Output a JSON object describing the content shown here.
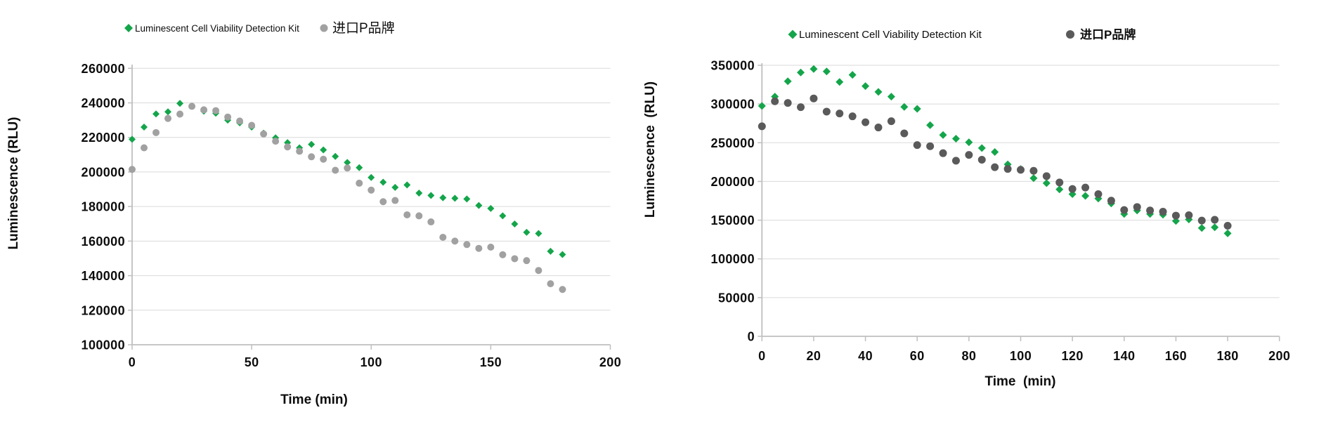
{
  "figure": {
    "background": "#ffffff"
  },
  "chart_data": [
    {
      "type": "scatter",
      "title": "",
      "xlabel": "Time (min)",
      "ylabel": "Luminescence (RLU)",
      "xlim": [
        0,
        200
      ],
      "ylim": [
        100000,
        260000
      ],
      "xticks": [
        0,
        50,
        100,
        150,
        200
      ],
      "yticks": [
        100000,
        120000,
        140000,
        160000,
        180000,
        200000,
        220000,
        240000,
        260000
      ],
      "grid": "horizontal",
      "legend_position": "top",
      "x": [
        0,
        5,
        10,
        15,
        20,
        25,
        30,
        35,
        40,
        45,
        50,
        55,
        60,
        65,
        70,
        75,
        80,
        85,
        90,
        95,
        100,
        105,
        110,
        115,
        120,
        125,
        130,
        135,
        140,
        145,
        150,
        155,
        160,
        165,
        170,
        175,
        180
      ],
      "series": [
        {
          "name": "Luminescent Cell Viability Detection Kit",
          "marker": "diamond",
          "color": "#14A54B",
          "values": [
            218900,
            226000,
            233600,
            234800,
            239700,
            238200,
            235200,
            234000,
            230000,
            228400,
            226000,
            222500,
            219800,
            217000,
            214000,
            216000,
            212800,
            209000,
            205500,
            202500,
            196800,
            194100,
            191100,
            192500,
            187800,
            186400,
            185100,
            184800,
            184400,
            180600,
            178900,
            174600,
            169900,
            165100,
            164400,
            154100,
            152200
          ]
        },
        {
          "name": "进口P品牌",
          "marker": "circle",
          "color": "#A1A1A1",
          "values": [
            201500,
            214000,
            222800,
            231000,
            233500,
            238000,
            236000,
            235500,
            231800,
            229500,
            227000,
            222000,
            217800,
            214500,
            212000,
            208800,
            207400,
            201000,
            202300,
            193500,
            189500,
            182800,
            183500,
            175200,
            174600,
            171100,
            162200,
            160000,
            158000,
            155800,
            156500,
            152100,
            149800,
            148700,
            143000,
            135300,
            132000
          ]
        }
      ]
    },
    {
      "type": "scatter",
      "title": "",
      "xlabel": "Time  (min)",
      "ylabel": "Luminescence  (RLU)",
      "xlim": [
        0,
        200
      ],
      "ylim": [
        0,
        350000
      ],
      "xticks": [
        0,
        20,
        40,
        60,
        80,
        100,
        120,
        140,
        160,
        180,
        200
      ],
      "yticks": [
        0,
        50000,
        100000,
        150000,
        200000,
        250000,
        300000,
        350000
      ],
      "grid": "horizontal",
      "legend_position": "top",
      "x": [
        0,
        5,
        10,
        15,
        20,
        25,
        30,
        35,
        40,
        45,
        50,
        55,
        60,
        65,
        70,
        75,
        80,
        85,
        90,
        95,
        100,
        105,
        110,
        115,
        120,
        125,
        130,
        135,
        140,
        145,
        150,
        155,
        160,
        165,
        170,
        175,
        180
      ],
      "series": [
        {
          "name": "Luminescent Cell Viability Detection Kit",
          "marker": "diamond",
          "color": "#14A54B",
          "values": [
            297500,
            309500,
            329400,
            340700,
            345200,
            342100,
            328500,
            337600,
            323100,
            315600,
            309500,
            296300,
            293800,
            272700,
            260000,
            255200,
            250600,
            243100,
            238000,
            222000,
            216000,
            204200,
            197800,
            189700,
            183600,
            181300,
            178000,
            171600,
            158000,
            162500,
            158000,
            157100,
            148900,
            151000,
            139900,
            140800,
            132900
          ]
        },
        {
          "name": "进口P品牌",
          "marker": "circle",
          "color": "#5A5A5A",
          "values": [
            271200,
            303500,
            301400,
            295900,
            307200,
            290200,
            287800,
            284100,
            276400,
            269700,
            277800,
            262100,
            247000,
            245500,
            236500,
            226800,
            234300,
            228000,
            218400,
            216200,
            215000,
            213800,
            206900,
            198700,
            190300,
            192100,
            183600,
            175200,
            163100,
            167000,
            162500,
            161000,
            155900,
            156400,
            149500,
            150500,
            142800
          ]
        }
      ]
    }
  ]
}
